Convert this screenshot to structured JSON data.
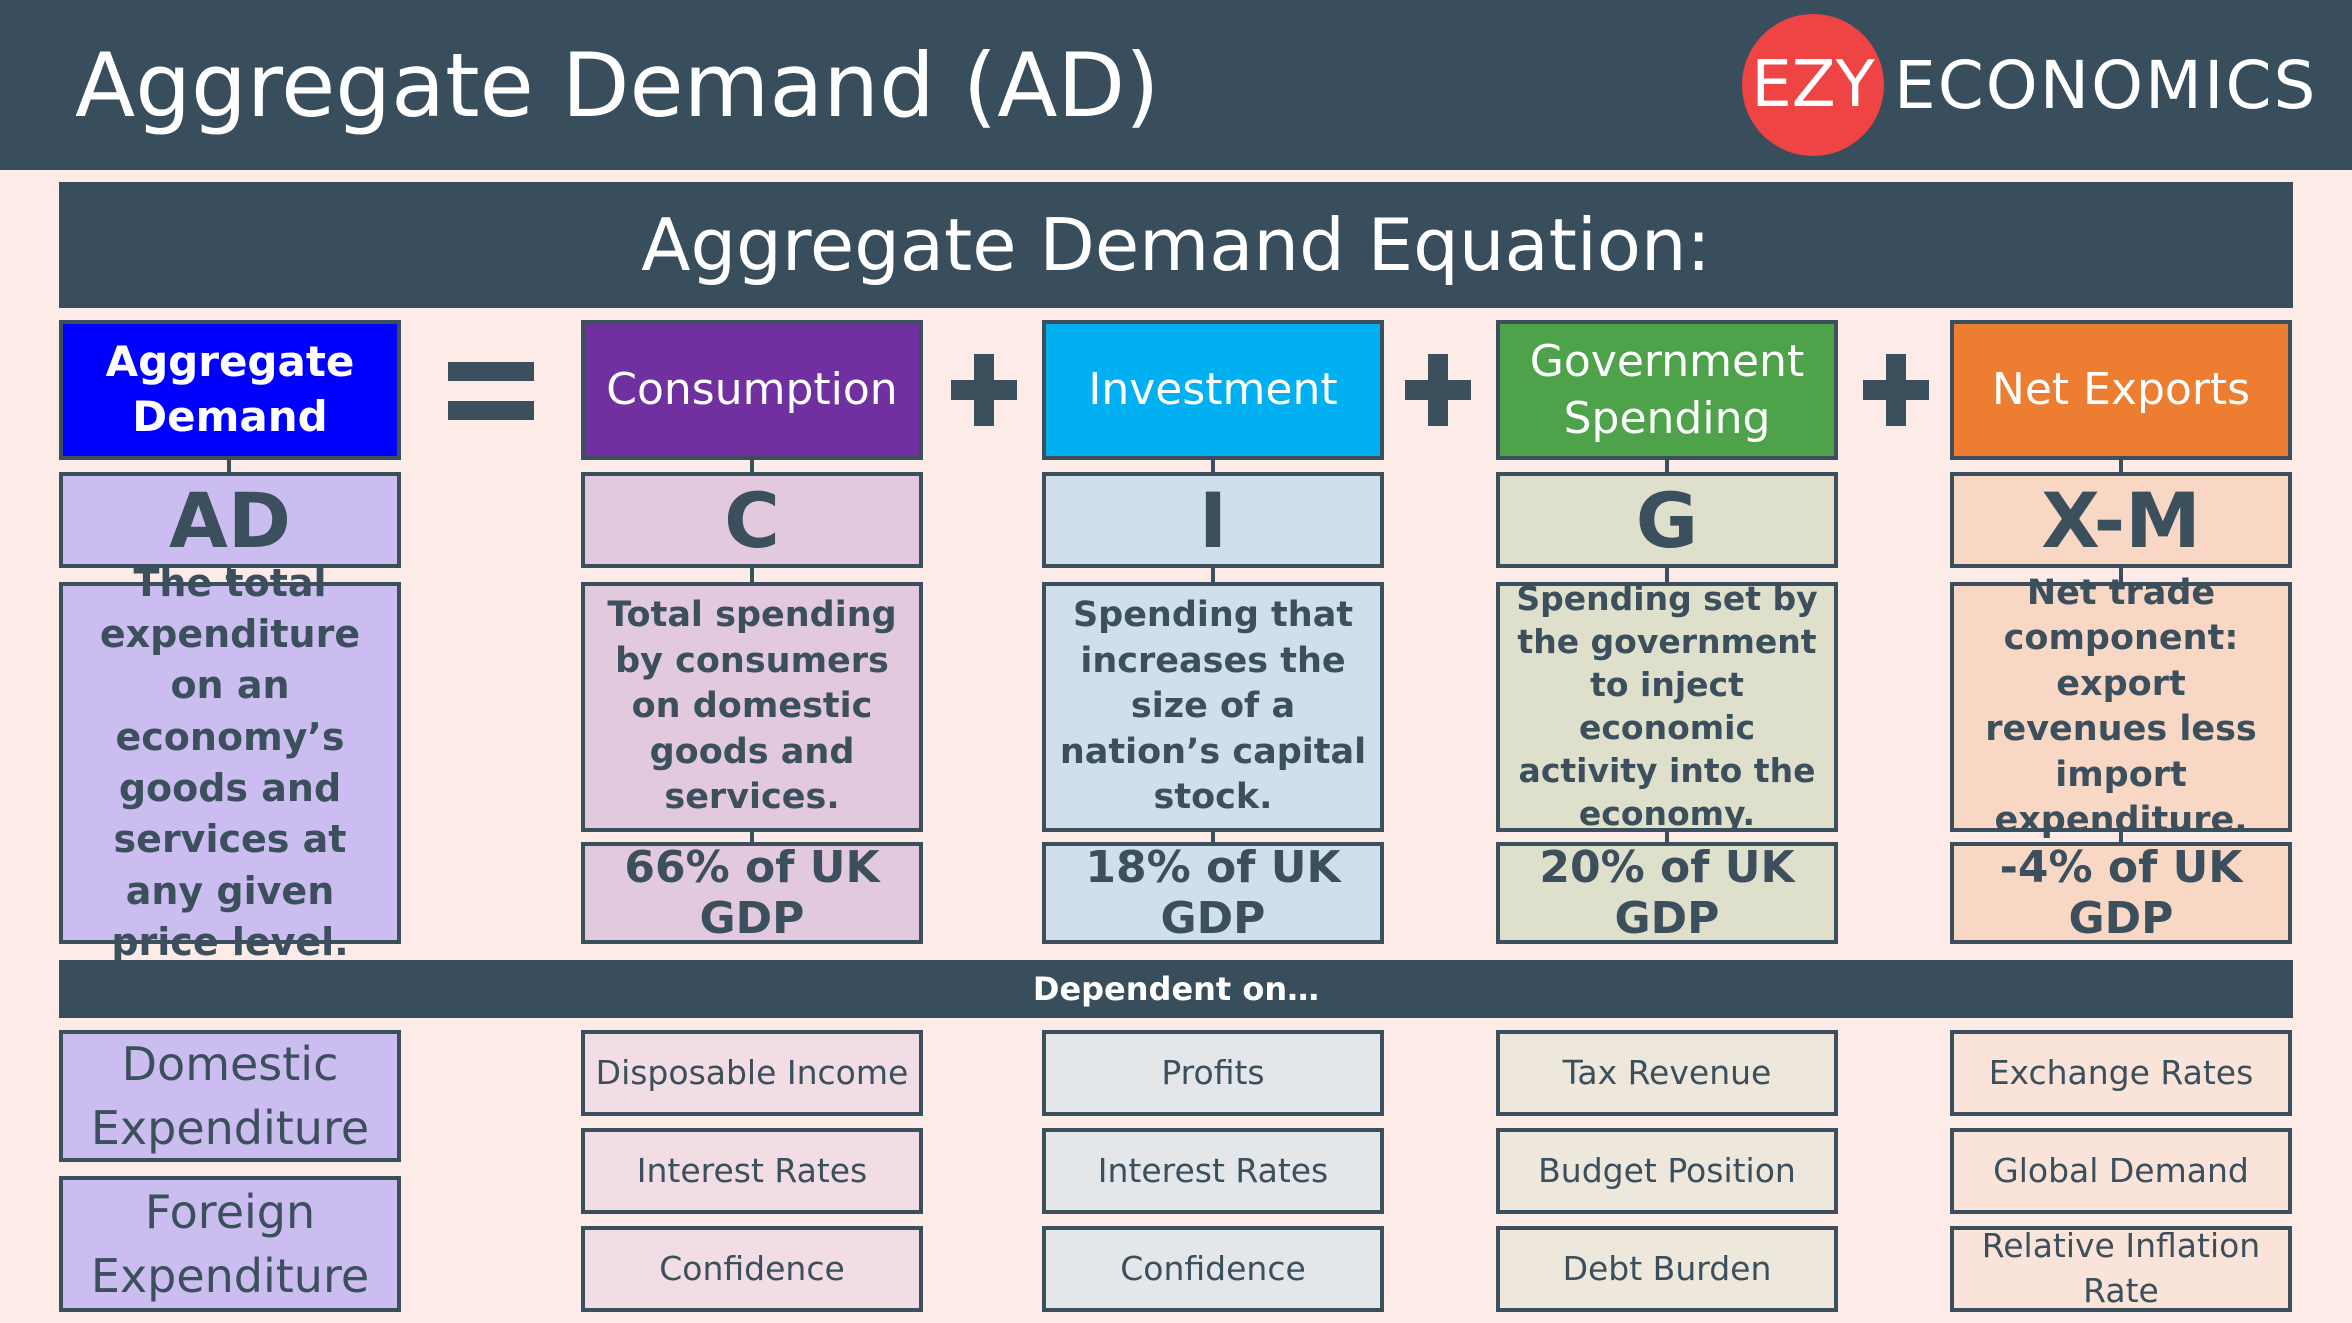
{
  "header": {
    "title": "Aggregate Demand (AD)"
  },
  "logo": {
    "circle_text": "EZY",
    "text": "ECONOMICS"
  },
  "equation_banner": "Aggregate Demand Equation:",
  "dependent_banner": "Dependent on…",
  "operators": {
    "equals": "=",
    "plus": "+"
  },
  "colors": {
    "dark": "#384e5c",
    "logo_red": "#ee4444",
    "ad": "#0000ff",
    "consumption": "#7030a0",
    "investment": "#00b0f0",
    "government": "#4ea34a",
    "net_exports": "#ed7d31"
  },
  "columns": [
    {
      "header": "Aggregate Demand",
      "symbol": "AD",
      "description": "The total expenditure on an economy’s goods and services at any given price level.",
      "dependents": [
        "Domestic Expenditure",
        "Foreign Expenditure"
      ]
    },
    {
      "header": "Consumption",
      "symbol": "C",
      "description": "Total spending by consumers on domestic goods and services.",
      "share": "66% of UK GDP",
      "dependents": [
        "Disposable Income",
        "Interest Rates",
        "Confidence"
      ]
    },
    {
      "header": "Investment",
      "symbol": "I",
      "description": "Spending that increases the size of a nation’s capital stock.",
      "share": "18% of UK GDP",
      "dependents": [
        "Profits",
        "Interest Rates",
        "Confidence"
      ]
    },
    {
      "header": "Government Spending",
      "symbol": "G",
      "description": "Spending set by the government to inject economic activity into the economy.",
      "share": "20% of UK GDP",
      "dependents": [
        "Tax Revenue",
        "Budget Position",
        "Debt Burden"
      ]
    },
    {
      "header": "Net Exports",
      "symbol": "X-M",
      "description": "Net trade component: export revenues less import expenditure.",
      "share": "-4% of UK GDP",
      "dependents": [
        "Exchange Rates",
        "Global Demand",
        "Relative Inflation Rate"
      ]
    }
  ]
}
